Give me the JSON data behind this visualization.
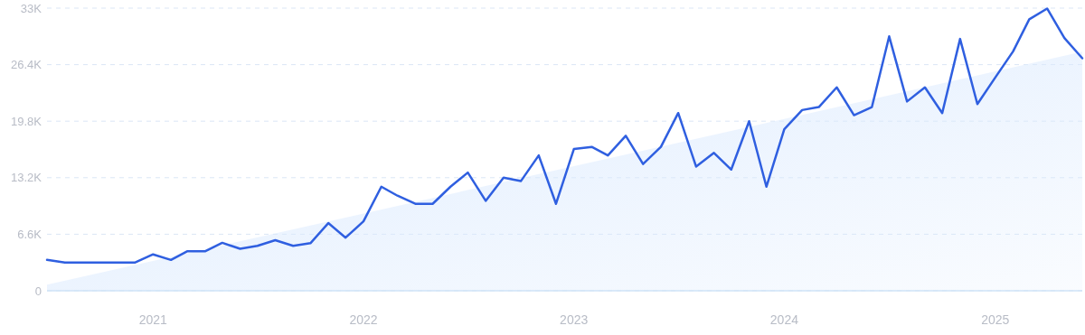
{
  "chart_data": {
    "type": "line",
    "x": [
      "2020-07",
      "2020-08",
      "2020-09",
      "2020-10",
      "2020-11",
      "2020-12",
      "2021-01",
      "2021-02",
      "2021-03",
      "2021-04",
      "2021-05",
      "2021-06",
      "2021-07",
      "2021-08",
      "2021-09",
      "2021-10",
      "2021-11",
      "2021-12",
      "2022-01",
      "2022-02",
      "2022-03",
      "2022-04",
      "2022-05",
      "2022-06",
      "2022-07",
      "2022-08",
      "2022-09",
      "2022-10",
      "2022-11",
      "2022-12",
      "2023-01",
      "2023-02",
      "2023-03",
      "2023-04",
      "2023-05",
      "2023-06",
      "2023-07",
      "2023-08",
      "2023-09",
      "2023-10",
      "2023-11",
      "2023-12",
      "2024-01",
      "2024-02",
      "2024-03",
      "2024-04",
      "2024-05",
      "2024-06",
      "2024-07",
      "2024-08",
      "2024-09",
      "2024-10",
      "2024-11",
      "2024-12",
      "2025-01",
      "2025-02",
      "2025-03",
      "2025-04",
      "2025-05",
      "2025-06"
    ],
    "series": [
      {
        "type": "area",
        "color": "#dbeafe",
        "x": [
          "2020-07",
          "2025-06"
        ],
        "values": [
          700,
          27900
        ]
      },
      {
        "color": "#2f5fe0",
        "values": [
          3600,
          3300,
          3300,
          3300,
          3300,
          3300,
          4250,
          3600,
          4600,
          4600,
          5600,
          4900,
          5250,
          5900,
          5250,
          5550,
          7900,
          6200,
          8100,
          12150,
          11100,
          10150,
          10150,
          12150,
          13800,
          10500,
          13200,
          12800,
          15800,
          10150,
          16550,
          16800,
          15800,
          18100,
          14800,
          16800,
          20750,
          14500,
          16100,
          14150,
          19800,
          12150,
          18850,
          21100,
          21450,
          23750,
          20500,
          21450,
          29700,
          22100,
          23750,
          20750,
          29400,
          21800,
          24900,
          27950,
          31700,
          32950,
          29500,
          27150
        ]
      }
    ],
    "xlim": [
      "2020-07",
      "2025-06"
    ],
    "xticks": [
      {
        "value": "2021-01",
        "label": "2021"
      },
      {
        "value": "2022-01",
        "label": "2022"
      },
      {
        "value": "2023-01",
        "label": "2023"
      },
      {
        "value": "2024-01",
        "label": "2024"
      },
      {
        "value": "2025-01",
        "label": "2025"
      }
    ],
    "ylim": [
      0,
      33000
    ],
    "yticks": [
      0,
      {
        "value": 6600,
        "label": "6.6K"
      },
      {
        "value": 13200,
        "label": "13.2K"
      },
      {
        "value": 19800,
        "label": "19.8K"
      },
      {
        "value": 26400,
        "label": "26.4K"
      },
      {
        "value": 33000,
        "label": "33K"
      }
    ],
    "grid": "y",
    "line_style": "solid",
    "marker": "none"
  }
}
